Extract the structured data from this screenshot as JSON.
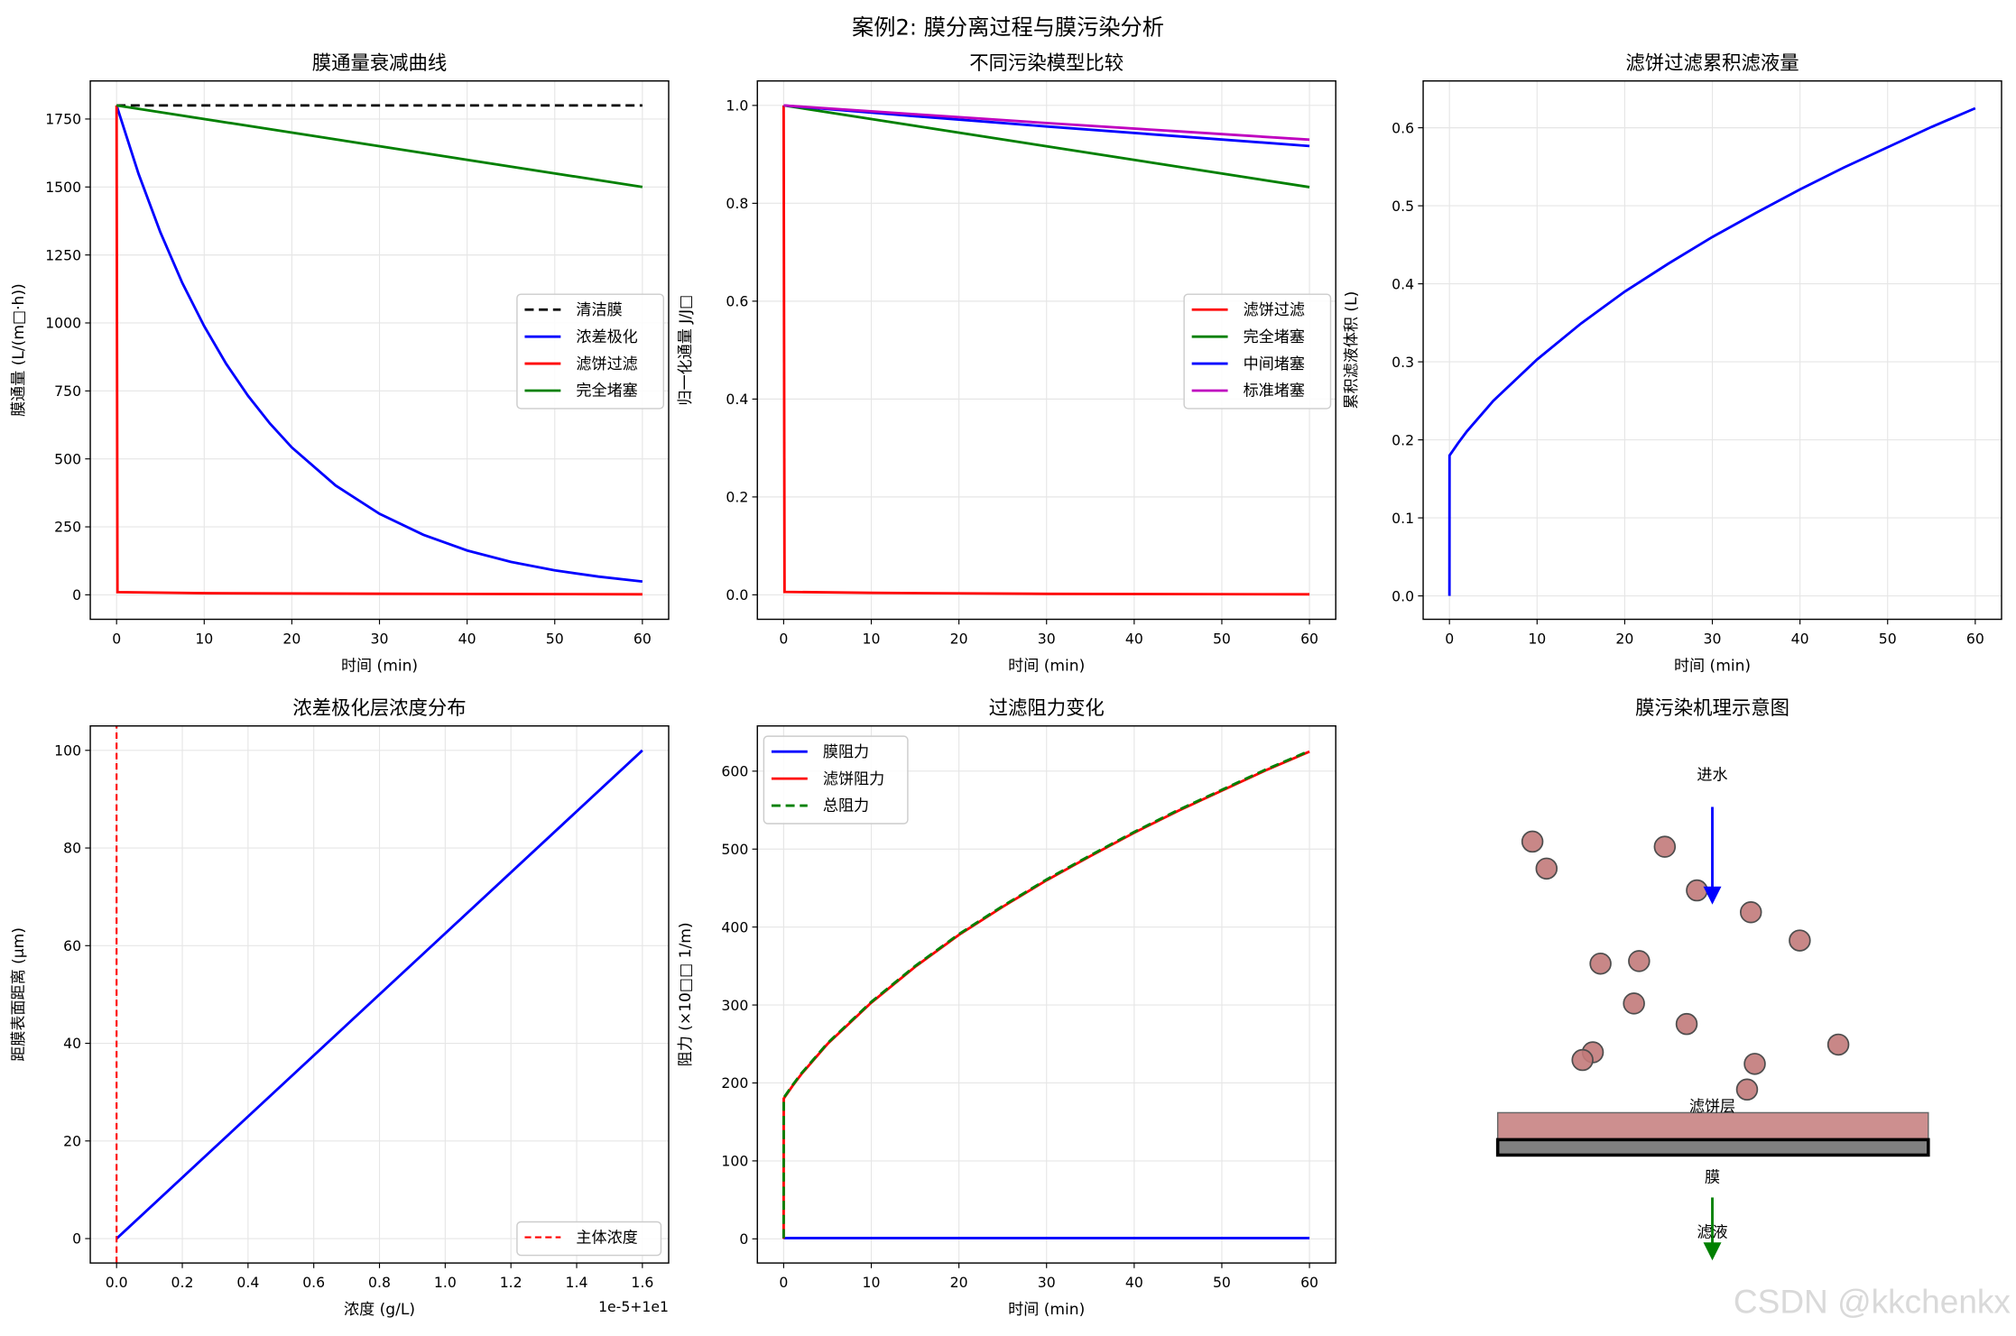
{
  "suptitle": "案例2: 膜分离过程与膜污染分析",
  "watermark": "CSDN @kkchenkx",
  "chart_data": [
    {
      "type": "line",
      "title": "膜通量衰减曲线",
      "xlabel": "时间 (min)",
      "ylabel": "膜通量 (L/(m□·h))",
      "xlim": [
        -3,
        63
      ],
      "ylim": [
        -90,
        1890
      ],
      "xticks": [
        0,
        10,
        20,
        30,
        40,
        50,
        60
      ],
      "xticklabels": [
        "0",
        "10",
        "20",
        "30",
        "40",
        "50",
        "60"
      ],
      "yticks": [
        0,
        250,
        500,
        750,
        1000,
        1250,
        1500,
        1750
      ],
      "yticklabels": [
        "0",
        "250",
        "500",
        "750",
        "1000",
        "1250",
        "1500",
        "1750"
      ],
      "grid": true,
      "legend": "center-right",
      "series": [
        {
          "name": "清洁膜",
          "color": "#000000",
          "dash": true,
          "x": [
            0,
            60
          ],
          "y": [
            1800,
            1800
          ]
        },
        {
          "name": "浓差极化",
          "color": "#0000ff",
          "x": [
            0,
            2.5,
            5,
            7.5,
            10,
            12.5,
            15,
            17.5,
            20,
            25,
            30,
            35,
            40,
            45,
            50,
            55,
            60
          ],
          "y": [
            1800,
            1549,
            1333,
            1147,
            988,
            850,
            732,
            630,
            542,
            402,
            298,
            221,
            163,
            121,
            90,
            67,
            49
          ]
        },
        {
          "name": "滤饼过滤",
          "color": "#ff0000",
          "x": [
            0,
            0.1,
            10,
            30,
            60
          ],
          "y": [
            1800,
            10,
            6,
            4,
            2
          ]
        },
        {
          "name": "完全堵塞",
          "color": "#008000",
          "x": [
            0,
            60
          ],
          "y": [
            1800,
            1500
          ]
        }
      ]
    },
    {
      "type": "line",
      "title": "不同污染模型比较",
      "xlabel": "时间 (min)",
      "ylabel": "归一化通量 J/J□",
      "xlim": [
        -3,
        63
      ],
      "ylim": [
        -0.05,
        1.05
      ],
      "xticks": [
        0,
        10,
        20,
        30,
        40,
        50,
        60
      ],
      "xticklabels": [
        "0",
        "10",
        "20",
        "30",
        "40",
        "50",
        "60"
      ],
      "yticks": [
        0,
        0.2,
        0.4,
        0.6,
        0.8,
        1.0
      ],
      "yticklabels": [
        "0.0",
        "0.2",
        "0.4",
        "0.6",
        "0.8",
        "1.0"
      ],
      "grid": true,
      "legend": "center-right",
      "series": [
        {
          "name": "滤饼过滤",
          "color": "#ff0000",
          "x": [
            0,
            0.1,
            10,
            30,
            60
          ],
          "y": [
            1,
            0.006,
            0.004,
            0.002,
            0.001
          ]
        },
        {
          "name": "完全堵塞",
          "color": "#008000",
          "x": [
            0,
            60
          ],
          "y": [
            1,
            0.833
          ]
        },
        {
          "name": "中间堵塞",
          "color": "#0000ff",
          "x": [
            0,
            15,
            30,
            45,
            60
          ],
          "y": [
            1,
            0.978,
            0.957,
            0.937,
            0.917
          ]
        },
        {
          "name": "标准堵塞",
          "color": "#bf00bf",
          "x": [
            0,
            15,
            30,
            45,
            60
          ],
          "y": [
            1,
            0.982,
            0.964,
            0.947,
            0.93
          ]
        }
      ]
    },
    {
      "type": "line",
      "title": "滤饼过滤累积滤液量",
      "xlabel": "时间 (min)",
      "ylabel": "累积滤液体积 (L)",
      "xlim": [
        -3,
        63
      ],
      "ylim": [
        -0.03,
        0.66
      ],
      "xticks": [
        0,
        10,
        20,
        30,
        40,
        50,
        60
      ],
      "xticklabels": [
        "0",
        "10",
        "20",
        "30",
        "40",
        "50",
        "60"
      ],
      "yticks": [
        0,
        0.1,
        0.2,
        0.3,
        0.4,
        0.5,
        0.6
      ],
      "yticklabels": [
        "0.0",
        "0.1",
        "0.2",
        "0.3",
        "0.4",
        "0.5",
        "0.6"
      ],
      "grid": true,
      "series": [
        {
          "color": "#0000ff",
          "x": [
            0,
            0.01,
            1,
            2,
            5,
            10,
            15,
            20,
            25,
            30,
            35,
            40,
            45,
            50,
            55,
            60
          ],
          "y": [
            0,
            0.18,
            0.196,
            0.211,
            0.25,
            0.303,
            0.349,
            0.39,
            0.426,
            0.46,
            0.491,
            0.521,
            0.549,
            0.575,
            0.601,
            0.625
          ]
        }
      ]
    },
    {
      "type": "line",
      "title": "浓差极化层浓度分布",
      "xlabel": "浓度 (g/L)",
      "ylabel": "距膜表面距离 (μm)",
      "x_offset_label": "1e-5+1e1",
      "xlim": [
        -0.08,
        1.68
      ],
      "ylim": [
        -5,
        105
      ],
      "xticks": [
        0,
        0.2,
        0.4,
        0.6,
        0.8,
        1.0,
        1.2,
        1.4,
        1.6
      ],
      "xticklabels": [
        "0.0",
        "0.2",
        "0.4",
        "0.6",
        "0.8",
        "1.0",
        "1.2",
        "1.4",
        "1.6"
      ],
      "yticks": [
        0,
        20,
        40,
        60,
        80,
        100
      ],
      "yticklabels": [
        "0",
        "20",
        "40",
        "60",
        "80",
        "100"
      ],
      "grid": true,
      "legend": "lower-right",
      "series": [
        {
          "color": "#0000ff",
          "x": [
            0,
            1.6
          ],
          "y": [
            0,
            100
          ]
        },
        {
          "name": "主体浓度",
          "color": "#ff0000",
          "dash": true,
          "thin": true,
          "x": [
            0,
            0
          ],
          "y": [
            -5,
            105
          ]
        }
      ]
    },
    {
      "type": "line",
      "title": "过滤阻力变化",
      "xlabel": "时间 (min)",
      "ylabel": "阻力 (×10□□ 1/m)",
      "xlim": [
        -3,
        63
      ],
      "ylim": [
        -31,
        658
      ],
      "xticks": [
        0,
        10,
        20,
        30,
        40,
        50,
        60
      ],
      "xticklabels": [
        "0",
        "10",
        "20",
        "30",
        "40",
        "50",
        "60"
      ],
      "yticks": [
        0,
        100,
        200,
        300,
        400,
        500,
        600
      ],
      "yticklabels": [
        "0",
        "100",
        "200",
        "300",
        "400",
        "500",
        "600"
      ],
      "grid": true,
      "legend": "upper-left",
      "series": [
        {
          "name": "膜阻力",
          "color": "#0000ff",
          "x": [
            0,
            60
          ],
          "y": [
            1,
            1
          ]
        },
        {
          "name": "滤饼阻力",
          "color": "#ff0000",
          "x": [
            0,
            0.01,
            1,
            2,
            5,
            10,
            15,
            20,
            25,
            30,
            35,
            40,
            45,
            50,
            55,
            60
          ],
          "y": [
            0,
            180,
            196,
            211,
            250,
            303,
            349,
            390,
            426,
            460,
            491,
            521,
            549,
            575,
            601,
            625
          ]
        },
        {
          "name": "总阻力",
          "color": "#008000",
          "dash": true,
          "x": [
            0,
            0.01,
            1,
            2,
            5,
            10,
            15,
            20,
            25,
            30,
            35,
            40,
            45,
            50,
            55,
            60
          ],
          "y": [
            1,
            181,
            197,
            212,
            251,
            304,
            350,
            391,
            427,
            461,
            492,
            522,
            550,
            576,
            602,
            626
          ]
        }
      ]
    }
  ],
  "schematic": {
    "title": "膜污染机理示意图",
    "feed_label": "进水",
    "cake_label": "滤饼层",
    "membrane_label": "膜",
    "permeate_label": "滤液",
    "particle_color": "#c27a7a",
    "cake_color": "#cd8f8f",
    "membrane_color": "#808080",
    "feed_arrow_color": "#0000ff",
    "permeate_arrow_color": "#008000",
    "particle_count": 15
  }
}
